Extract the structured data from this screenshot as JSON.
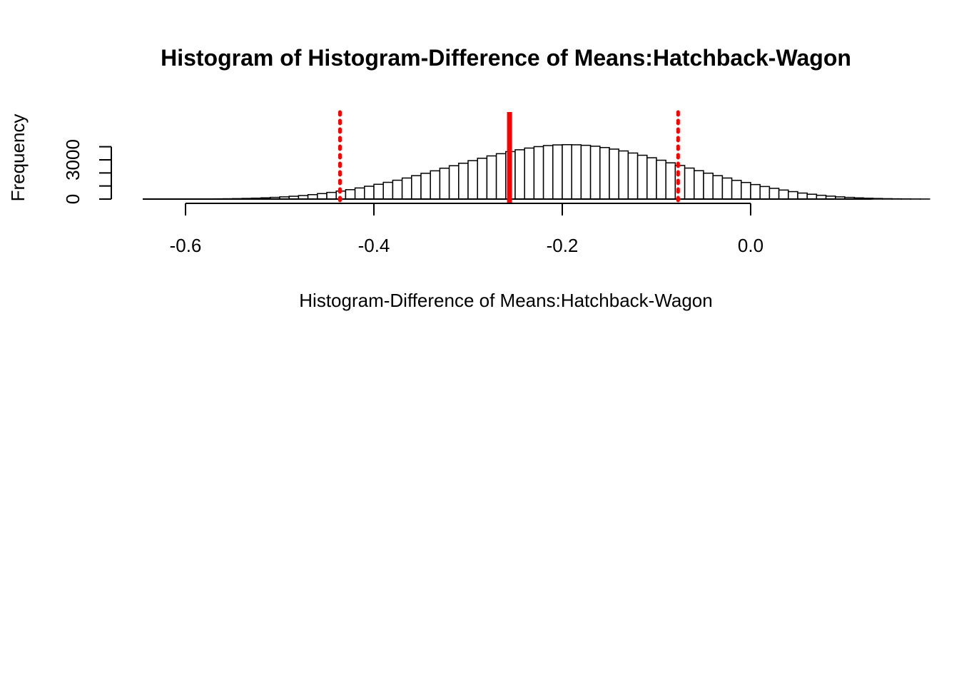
{
  "chart_data": {
    "type": "bar",
    "title": "Histogram of  Histogram-Difference of Means:Hatchback-Wagon",
    "xlabel": "Histogram-Difference of Means:Hatchback-Wagon",
    "ylabel": "Frequency",
    "x_ticks": [
      "-0.6",
      "-0.4",
      "-0.2",
      "0.0"
    ],
    "x_tick_values": [
      -0.6,
      -0.4,
      -0.2,
      0.0
    ],
    "y_ticks": [
      "0",
      "3000"
    ],
    "y_minor_ticks": [
      0,
      1000,
      2000,
      3000,
      4000
    ],
    "xlim": [
      -0.65,
      0.13
    ],
    "ylim": [
      0,
      4300
    ],
    "bin_width": 0.01,
    "bin_start": -0.6,
    "counts": [
      5,
      8,
      12,
      18,
      25,
      35,
      50,
      70,
      95,
      130,
      170,
      215,
      270,
      340,
      420,
      510,
      610,
      720,
      850,
      980,
      1130,
      1280,
      1440,
      1610,
      1790,
      1970,
      2160,
      2360,
      2550,
      2740,
      2940,
      3120,
      3300,
      3470,
      3630,
      3770,
      3900,
      4010,
      4090,
      4140,
      4160,
      4150,
      4110,
      4040,
      3940,
      3820,
      3680,
      3520,
      3350,
      3160,
      2970,
      2770,
      2570,
      2370,
      2170,
      1980,
      1790,
      1610,
      1430,
      1270,
      1110,
      960,
      820,
      690,
      570,
      460,
      370,
      290,
      225,
      170,
      128,
      92,
      65,
      45,
      30,
      20,
      13,
      8,
      5
    ],
    "vlines": [
      {
        "x": -0.256,
        "style": "solid",
        "color": "#ff0000"
      },
      {
        "x": -0.436,
        "style": "dotted",
        "color": "#ff0000"
      },
      {
        "x": -0.077,
        "style": "dotted",
        "color": "#ff0000"
      }
    ],
    "bar_fill": "#ffffff",
    "bar_stroke": "#000000",
    "grid": false
  }
}
